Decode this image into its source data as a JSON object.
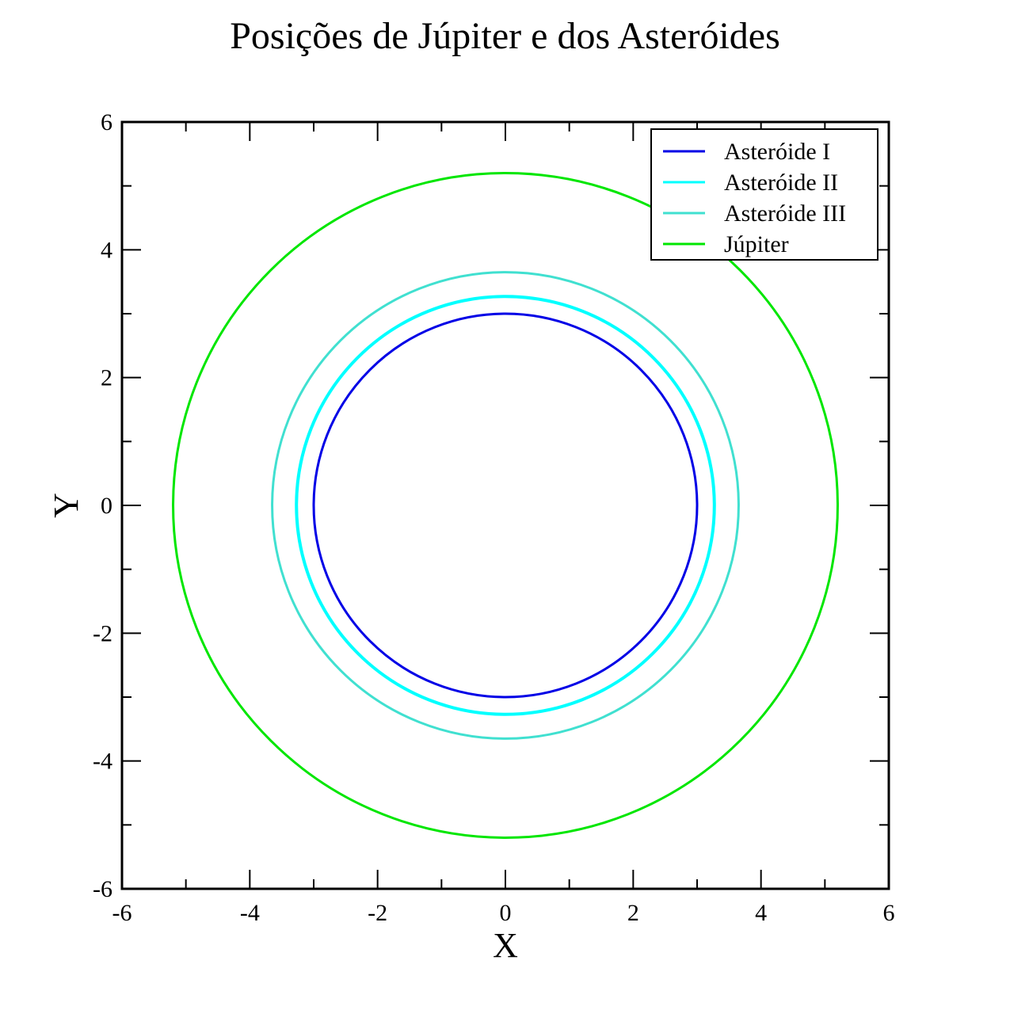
{
  "chart_data": {
    "type": "line",
    "title": "Posições de Júpiter e dos Asteróides",
    "xlabel": "X",
    "ylabel": "Y",
    "xlim": [
      -6,
      6
    ],
    "ylim": [
      -6,
      6
    ],
    "xticks": [
      -6,
      -4,
      -2,
      0,
      2,
      4,
      6
    ],
    "yticks": [
      -6,
      -4,
      -2,
      0,
      2,
      4,
      6
    ],
    "grid": false,
    "legend_position": "top-right",
    "series": [
      {
        "name": "Asteróide I",
        "color": "#0000e6",
        "shape": "orbit",
        "radius_x": 3.0,
        "radius_y": 3.0,
        "center": [
          0,
          0
        ]
      },
      {
        "name": "Asteróide II",
        "color": "#00ffff",
        "shape": "orbit",
        "radius_x": 3.27,
        "radius_y": 3.27,
        "center": [
          0,
          0
        ]
      },
      {
        "name": "Asteróide III",
        "color": "#40e0d0",
        "shape": "orbit",
        "radius_x": 3.65,
        "radius_y": 3.65,
        "center": [
          0,
          0
        ]
      },
      {
        "name": "Júpiter",
        "color": "#00e600",
        "shape": "orbit",
        "radius_x": 5.2,
        "radius_y": 5.2,
        "center": [
          0,
          0
        ]
      }
    ]
  }
}
